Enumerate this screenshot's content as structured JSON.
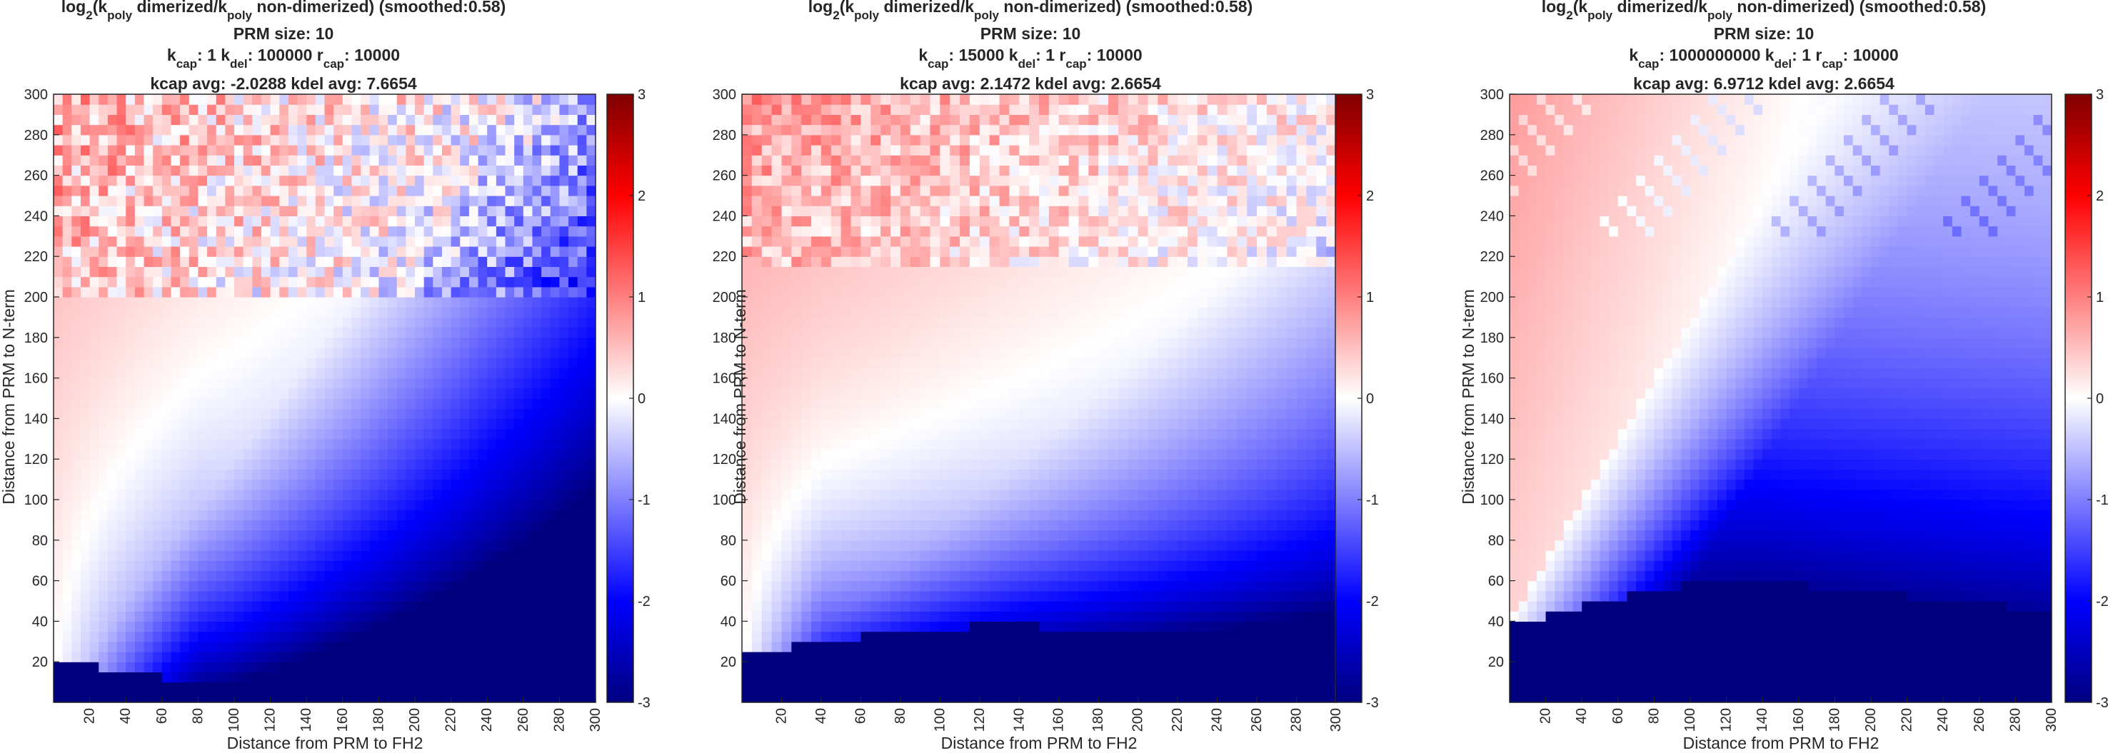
{
  "chart_data": [
    {
      "type": "heatmap",
      "title_lines": [
        [
          {
            "t": "log"
          },
          {
            "sub": "2"
          },
          {
            "t": "(k"
          },
          {
            "sub": "poly"
          },
          {
            "t": " dimerized/k"
          },
          {
            "sub": "poly"
          },
          {
            "t": " non-dimerized) (smoothed:0.58)"
          }
        ],
        [
          {
            "t": "PRM size: 10"
          }
        ],
        [
          {
            "t": "k"
          },
          {
            "sub": "cap"
          },
          {
            "t": ": 1 k"
          },
          {
            "sub": "del"
          },
          {
            "t": ": 100000 r"
          },
          {
            "sub": "cap"
          },
          {
            "t": ": 10000"
          }
        ],
        [
          {
            "t": "kcap avg: -2.0288 kdel avg: 7.6654"
          }
        ]
      ],
      "xlabel": "Distance from PRM to FH2",
      "ylabel": "Distance from PRM to N-term",
      "xlim": [
        0,
        300
      ],
      "ylim": [
        0,
        300
      ],
      "xticks": [
        20,
        40,
        60,
        80,
        100,
        120,
        140,
        160,
        180,
        200,
        220,
        240,
        260,
        280,
        300
      ],
      "yticks": [
        20,
        40,
        60,
        80,
        100,
        120,
        140,
        160,
        180,
        200,
        220,
        240,
        260,
        280,
        300
      ],
      "clim": [
        -3,
        3
      ],
      "cticks": [
        -3,
        -2,
        -1,
        0,
        1,
        2,
        3
      ],
      "colormap": "blue-white-red",
      "color_neg": "#00007f",
      "color_pos": "#7f0000",
      "pattern": {
        "boundary_y0": 21,
        "boundary_drop_x": 100,
        "floor_y": 7,
        "sat_y_at_300": 0,
        "noise_above_y": 200,
        "fan_slope": 1.2,
        "red_strength": 0.35,
        "blue_strength": 1.5
      }
    },
    {
      "type": "heatmap",
      "title_lines": [
        [
          {
            "t": "log"
          },
          {
            "sub": "2"
          },
          {
            "t": "(k"
          },
          {
            "sub": "poly"
          },
          {
            "t": " dimerized/k"
          },
          {
            "sub": "poly"
          },
          {
            "t": " non-dimerized) (smoothed:0.58)"
          }
        ],
        [
          {
            "t": "PRM size: 10"
          }
        ],
        [
          {
            "t": "k"
          },
          {
            "sub": "cap"
          },
          {
            "t": ": 15000 k"
          },
          {
            "sub": "del"
          },
          {
            "t": ": 1 r"
          },
          {
            "sub": "cap"
          },
          {
            "t": ": 10000"
          }
        ],
        [
          {
            "t": "kcap avg: 2.1472 kdel avg: 2.6654"
          }
        ]
      ],
      "xlabel": "Distance from PRM to FH2",
      "ylabel": "Distance from PRM to N-term",
      "xlim": [
        0,
        300
      ],
      "ylim": [
        0,
        300
      ],
      "xticks": [
        20,
        40,
        60,
        80,
        100,
        120,
        140,
        160,
        180,
        200,
        220,
        240,
        260,
        280,
        300
      ],
      "yticks": [
        20,
        40,
        60,
        80,
        100,
        120,
        140,
        160,
        180,
        200,
        220,
        240,
        260,
        280,
        300
      ],
      "clim": [
        -3,
        3
      ],
      "cticks": [
        -3,
        -2,
        -1,
        0,
        1,
        2,
        3
      ],
      "colormap": "blue-white-red",
      "color_neg": "#00007f",
      "color_pos": "#7f0000",
      "pattern": {
        "boundary_y0": 23,
        "boundary_peak_y": 38,
        "boundary_peak_x": 140,
        "boundary_end_y": 28,
        "noise_above_y": 215,
        "fan_slope": 0.85,
        "red_strength": 0.4,
        "blue_strength": 1.9
      }
    },
    {
      "type": "heatmap",
      "title_lines": [
        [
          {
            "t": "log"
          },
          {
            "sub": "2"
          },
          {
            "t": "(k"
          },
          {
            "sub": "poly"
          },
          {
            "t": " dimerized/k"
          },
          {
            "sub": "poly"
          },
          {
            "t": " non-dimerized) (smoothed:0.58)"
          }
        ],
        [
          {
            "t": "PRM size: 10"
          }
        ],
        [
          {
            "t": "k"
          },
          {
            "sub": "cap"
          },
          {
            "t": ": 1000000000 k"
          },
          {
            "sub": "del"
          },
          {
            "t": ": 1 r"
          },
          {
            "sub": "cap"
          },
          {
            "t": ": 10000"
          }
        ],
        [
          {
            "t": "kcap avg: 6.9712 kdel avg: 2.6654"
          }
        ]
      ],
      "xlabel": "Distance from PRM to FH2",
      "ylabel": "Distance from PRM to N-term",
      "xlim": [
        0,
        300
      ],
      "ylim": [
        0,
        300
      ],
      "xticks": [
        20,
        40,
        60,
        80,
        100,
        120,
        140,
        160,
        180,
        200,
        220,
        240,
        260,
        280,
        300
      ],
      "yticks": [
        20,
        40,
        60,
        80,
        100,
        120,
        140,
        160,
        180,
        200,
        220,
        240,
        260,
        280,
        300
      ],
      "clim": [
        -3,
        3
      ],
      "cticks": [
        -3,
        -2,
        -1,
        0,
        1,
        2,
        3
      ],
      "colormap": "blue-white-red",
      "color_neg": "#00007f",
      "color_pos": "#7f0000",
      "pattern": {
        "boundary_y0": 38,
        "boundary_peak_y": 60,
        "boundary_peak_x": 140,
        "boundary_end_y": 45,
        "diag_start_y": 40,
        "diag_end_x": 55,
        "streaks_above_y": 230,
        "red_strength": 0.35,
        "blue_strength": 2.8
      }
    }
  ]
}
